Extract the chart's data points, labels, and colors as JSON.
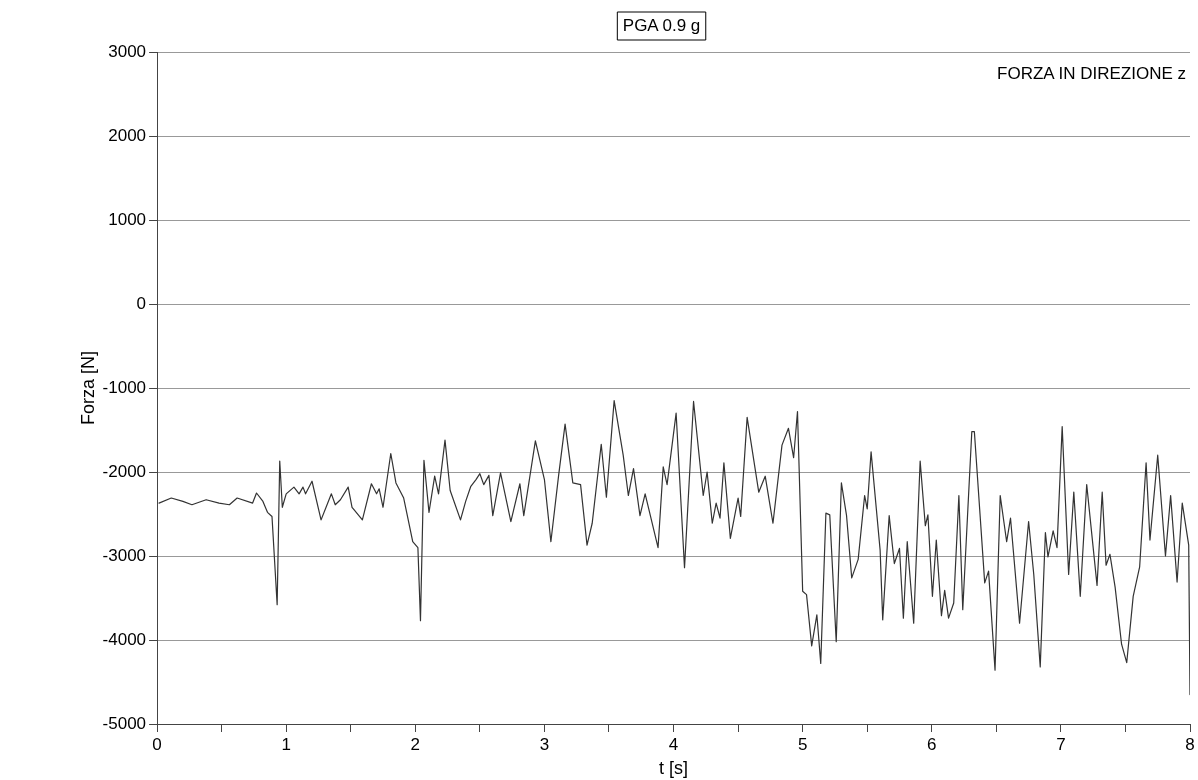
{
  "chart_data": {
    "type": "line",
    "title": "PGA 0.9 g",
    "xlabel": "t [s]",
    "ylabel": "Forza [N]",
    "annotations": [
      "FORZA IN DIREZIONE z"
    ],
    "xlim": [
      0,
      8
    ],
    "ylim": [
      -5000,
      3000
    ],
    "xticks": [
      0,
      {
        "value": 0.5,
        "label": null
      },
      1,
      {
        "value": 1.5,
        "label": null
      },
      2,
      {
        "value": 2.5,
        "label": null
      },
      3,
      {
        "value": 3.5,
        "label": null
      },
      4,
      {
        "value": 4.5,
        "label": null
      },
      5,
      {
        "value": 5.5,
        "label": null
      },
      6,
      {
        "value": 6.5,
        "label": null
      },
      7,
      {
        "value": 7.5,
        "label": null
      },
      8
    ],
    "yticks": [
      -5000,
      -4000,
      -3000,
      -2000,
      -1000,
      0,
      1000,
      2000,
      3000
    ],
    "grid": "y",
    "legend": false,
    "marker": "none",
    "line_style": "solid",
    "series": [
      {
        "color": "#333333",
        "x": [
          0.015,
          0.11,
          0.2,
          0.27,
          0.38,
          0.48,
          0.56,
          0.62,
          0.74,
          0.77,
          0.82,
          0.855,
          0.89,
          0.93,
          0.95,
          0.97,
          1.0,
          1.06,
          1.1,
          1.13,
          1.15,
          1.2,
          1.27,
          1.35,
          1.38,
          1.42,
          1.48,
          1.51,
          1.59,
          1.66,
          1.7,
          1.72,
          1.75,
          1.81,
          1.85,
          1.91,
          1.98,
          2.02,
          2.04,
          2.067,
          2.106,
          2.15,
          2.18,
          2.23,
          2.27,
          2.35,
          2.39,
          2.43,
          2.47,
          2.5,
          2.53,
          2.57,
          2.6,
          2.66,
          2.74,
          2.81,
          2.84,
          2.93,
          3.0,
          3.05,
          3.11,
          3.16,
          3.22,
          3.28,
          3.33,
          3.37,
          3.44,
          3.48,
          3.54,
          3.61,
          3.65,
          3.69,
          3.74,
          3.78,
          3.88,
          3.92,
          3.95,
          4.02,
          4.085,
          4.155,
          4.23,
          4.26,
          4.3,
          4.33,
          4.36,
          4.39,
          4.44,
          4.5,
          4.52,
          4.57,
          4.66,
          4.71,
          4.77,
          4.84,
          4.89,
          4.93,
          4.96,
          5.0,
          5.03,
          5.07,
          5.11,
          5.14,
          5.18,
          5.21,
          5.26,
          5.3,
          5.34,
          5.38,
          5.43,
          5.48,
          5.5,
          5.53,
          5.6,
          5.62,
          5.67,
          5.71,
          5.75,
          5.78,
          5.81,
          5.86,
          5.91,
          5.95,
          5.97,
          6.005,
          6.035,
          6.075,
          6.1,
          6.13,
          6.17,
          6.21,
          6.24,
          6.31,
          6.33,
          6.41,
          6.44,
          6.49,
          6.53,
          6.58,
          6.61,
          6.68,
          6.75,
          6.79,
          6.84,
          6.88,
          6.9,
          6.94,
          6.97,
          7.01,
          7.06,
          7.1,
          7.15,
          7.2,
          7.28,
          7.32,
          7.35,
          7.38,
          7.42,
          7.47,
          7.51,
          7.56,
          7.61,
          7.66,
          7.69,
          7.75,
          7.81,
          7.85,
          7.9,
          7.94,
          7.99,
          8.0
        ],
        "values": [
          -2370,
          -2310,
          -2350,
          -2390,
          -2330,
          -2370,
          -2390,
          -2310,
          -2370,
          -2250,
          -2350,
          -2480,
          -2530,
          -3580,
          -1870,
          -2420,
          -2260,
          -2180,
          -2260,
          -2180,
          -2260,
          -2110,
          -2570,
          -2260,
          -2390,
          -2330,
          -2180,
          -2420,
          -2570,
          -2140,
          -2260,
          -2200,
          -2420,
          -1780,
          -2130,
          -2310,
          -2830,
          -2900,
          -3770,
          -1860,
          -2480,
          -2050,
          -2260,
          -1620,
          -2220,
          -2570,
          -2350,
          -2170,
          -2090,
          -2020,
          -2150,
          -2040,
          -2520,
          -2010,
          -2590,
          -2140,
          -2520,
          -1630,
          -2090,
          -2830,
          -2040,
          -1430,
          -2130,
          -2150,
          -2870,
          -2610,
          -1670,
          -2300,
          -1150,
          -1800,
          -2280,
          -1960,
          -2520,
          -2260,
          -2900,
          -1940,
          -2150,
          -1300,
          -3140,
          -1160,
          -2280,
          -2000,
          -2610,
          -2370,
          -2550,
          -1890,
          -2790,
          -2310,
          -2530,
          -1350,
          -2240,
          -2050,
          -2610,
          -1680,
          -1480,
          -1830,
          -1280,
          -3420,
          -3460,
          -4070,
          -3700,
          -4280,
          -2490,
          -2510,
          -4020,
          -2130,
          -2520,
          -3260,
          -3040,
          -2280,
          -2440,
          -1760,
          -2930,
          -3760,
          -2520,
          -3090,
          -2910,
          -3740,
          -2830,
          -3800,
          -1870,
          -2640,
          -2510,
          -3480,
          -2810,
          -3710,
          -3410,
          -3740,
          -3560,
          -2280,
          -3640,
          -1520,
          -1520,
          -3320,
          -3180,
          -4360,
          -2280,
          -2830,
          -2550,
          -3800,
          -2590,
          -3220,
          -4320,
          -2720,
          -3010,
          -2700,
          -2900,
          -1460,
          -3220,
          -2240,
          -3480,
          -2150,
          -3350,
          -2240,
          -3110,
          -2980,
          -3370,
          -4050,
          -4270,
          -3480,
          -3130,
          -1890,
          -2810,
          -1800,
          -3000,
          -2280,
          -3310,
          -2370,
          -2870,
          -4650
        ]
      }
    ]
  }
}
